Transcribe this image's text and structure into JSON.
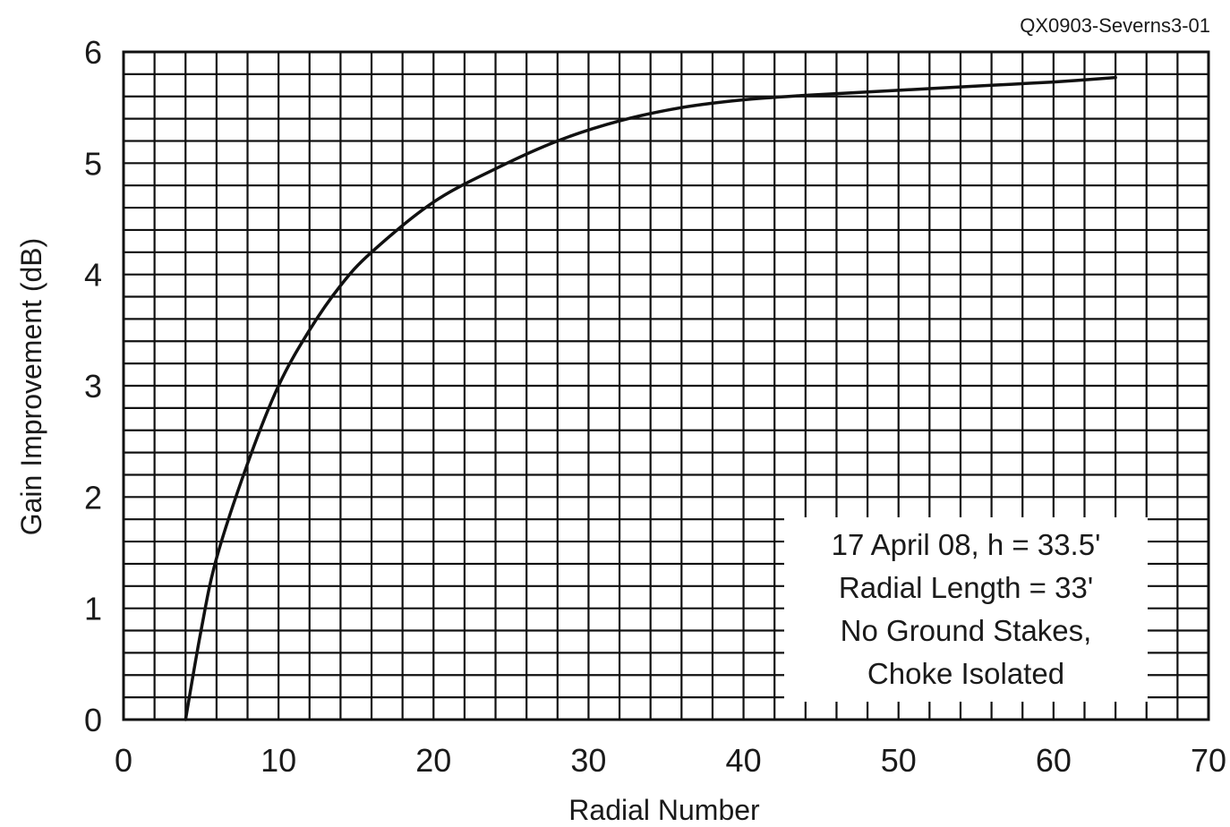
{
  "figure_id": "QX0903-Severns3-01",
  "chart_data": {
    "type": "line",
    "title": "",
    "xlabel": "Radial Number",
    "ylabel": "Gain Improvement (dB)",
    "xlim": [
      0,
      70
    ],
    "ylim": [
      0,
      6
    ],
    "x_ticks": [
      0,
      10,
      20,
      30,
      40,
      50,
      60,
      70
    ],
    "y_ticks": [
      0,
      1,
      2,
      3,
      4,
      5,
      6
    ],
    "grid": true,
    "grid_minor_x": 2,
    "grid_minor_y": 0.2,
    "series": [
      {
        "x": [
          4,
          5,
          6,
          8,
          10,
          12,
          14,
          16,
          20,
          24,
          28,
          32,
          36,
          40,
          44,
          48,
          52,
          56,
          60,
          64
        ],
        "y": [
          0,
          0.8,
          1.45,
          2.3,
          3.0,
          3.5,
          3.9,
          4.2,
          4.65,
          4.95,
          5.2,
          5.38,
          5.5,
          5.57,
          5.61,
          5.64,
          5.67,
          5.7,
          5.73,
          5.77
        ]
      }
    ],
    "annotation": {
      "lines": [
        "17 April 08, h = 33.5'",
        "Radial Length = 33'",
        "No Ground Stakes,",
        "Choke Isolated"
      ],
      "placement": "bottom-right"
    }
  }
}
